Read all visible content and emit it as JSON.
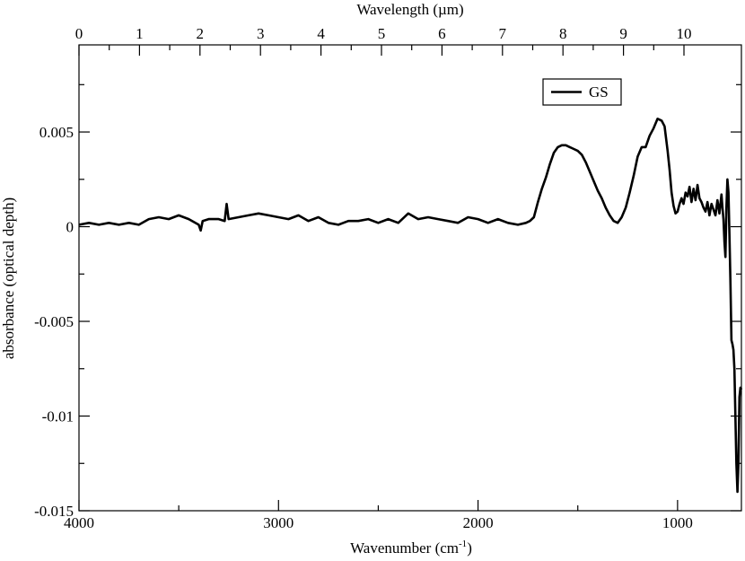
{
  "chart_data": {
    "type": "line",
    "xlabel": "Wavenumber (cm",
    "xlabel_superscript": "-1",
    "xlabel_suffix": ")",
    "top_xlabel": "Wavelength  (µm)",
    "ylabel": "absorbance (optical depth)",
    "xlim": [
      4000,
      680
    ],
    "ylim": [
      -0.015,
      0.0096
    ],
    "x_reversed": true,
    "grid": false,
    "legend_position": "top-right",
    "x_ticks": [
      4000,
      3000,
      2000,
      1000
    ],
    "x_tick_labels": [
      "4000",
      "3000",
      "2000",
      "1000"
    ],
    "y_ticks": [
      -0.015,
      -0.01,
      -0.005,
      0,
      0.005
    ],
    "y_tick_labels": [
      "-0.015",
      "-0.01",
      "-0.005",
      "0",
      "0.005"
    ],
    "top_ticks": [
      0,
      1,
      2,
      3,
      4,
      5,
      6,
      7,
      8,
      9,
      10
    ],
    "top_tick_labels": [
      "0",
      "1",
      "2",
      "3",
      "4",
      "5",
      "6",
      "7",
      "8",
      "9",
      "10"
    ],
    "series": [
      {
        "name": "GS",
        "color": "#000000",
        "x": [
          4000,
          3950,
          3900,
          3850,
          3800,
          3750,
          3700,
          3650,
          3600,
          3550,
          3500,
          3450,
          3400,
          3390,
          3380,
          3350,
          3300,
          3270,
          3260,
          3250,
          3200,
          3150,
          3100,
          3050,
          3000,
          2950,
          2900,
          2850,
          2800,
          2750,
          2700,
          2650,
          2600,
          2550,
          2500,
          2450,
          2400,
          2350,
          2300,
          2250,
          2200,
          2150,
          2100,
          2050,
          2000,
          1950,
          1900,
          1850,
          1800,
          1760,
          1740,
          1720,
          1700,
          1680,
          1660,
          1640,
          1620,
          1600,
          1580,
          1560,
          1540,
          1520,
          1500,
          1480,
          1460,
          1440,
          1420,
          1400,
          1380,
          1360,
          1340,
          1320,
          1300,
          1280,
          1260,
          1240,
          1220,
          1200,
          1180,
          1160,
          1140,
          1120,
          1100,
          1080,
          1065,
          1050,
          1040,
          1030,
          1020,
          1010,
          1000,
          990,
          980,
          970,
          960,
          950,
          940,
          930,
          920,
          910,
          900,
          890,
          880,
          870,
          860,
          850,
          840,
          830,
          820,
          810,
          800,
          790,
          780,
          775,
          770,
          765,
          760,
          755,
          750,
          745,
          740,
          735,
          730,
          725,
          720,
          715,
          710,
          705,
          700,
          695,
          690,
          685,
          680
        ],
        "y": [
          0.0001,
          0.0002,
          0.0001,
          0.0002,
          0.0001,
          0.0002,
          0.0001,
          0.0004,
          0.0005,
          0.0004,
          0.0006,
          0.0004,
          0.0001,
          -0.0002,
          0.0003,
          0.0004,
          0.0004,
          0.0003,
          0.0012,
          0.0004,
          0.0005,
          0.0006,
          0.0007,
          0.0006,
          0.0005,
          0.0004,
          0.0006,
          0.0003,
          0.0005,
          0.0002,
          0.0001,
          0.0003,
          0.0003,
          0.0004,
          0.0002,
          0.0004,
          0.0002,
          0.0007,
          0.0004,
          0.0005,
          0.0004,
          0.0003,
          0.0002,
          0.0005,
          0.0004,
          0.0002,
          0.0004,
          0.0002,
          0.0001,
          0.0002,
          0.0003,
          0.0005,
          0.0013,
          0.002,
          0.0026,
          0.0033,
          0.0039,
          0.0042,
          0.0043,
          0.0043,
          0.0042,
          0.0041,
          0.004,
          0.0038,
          0.0034,
          0.0029,
          0.0024,
          0.0019,
          0.0015,
          0.001,
          0.0006,
          0.0003,
          0.0002,
          0.0005,
          0.001,
          0.0018,
          0.0027,
          0.0037,
          0.0042,
          0.0042,
          0.0048,
          0.0052,
          0.0057,
          0.0056,
          0.0053,
          0.004,
          0.003,
          0.0018,
          0.0011,
          0.0007,
          0.0008,
          0.0012,
          0.0015,
          0.0012,
          0.0018,
          0.0016,
          0.0021,
          0.0013,
          0.002,
          0.0014,
          0.0022,
          0.0015,
          0.0013,
          0.001,
          0.0008,
          0.0013,
          0.0006,
          0.0012,
          0.0009,
          0.0006,
          0.0014,
          0.0007,
          0.0017,
          0.001,
          0.0004,
          -0.0008,
          -0.0016,
          0.001,
          0.0025,
          0.0018,
          -0.0005,
          -0.003,
          -0.006,
          -0.0062,
          -0.0065,
          -0.0075,
          -0.01,
          -0.0125,
          -0.014,
          -0.0125,
          -0.009,
          -0.0085,
          -0.0086
        ]
      }
    ]
  }
}
